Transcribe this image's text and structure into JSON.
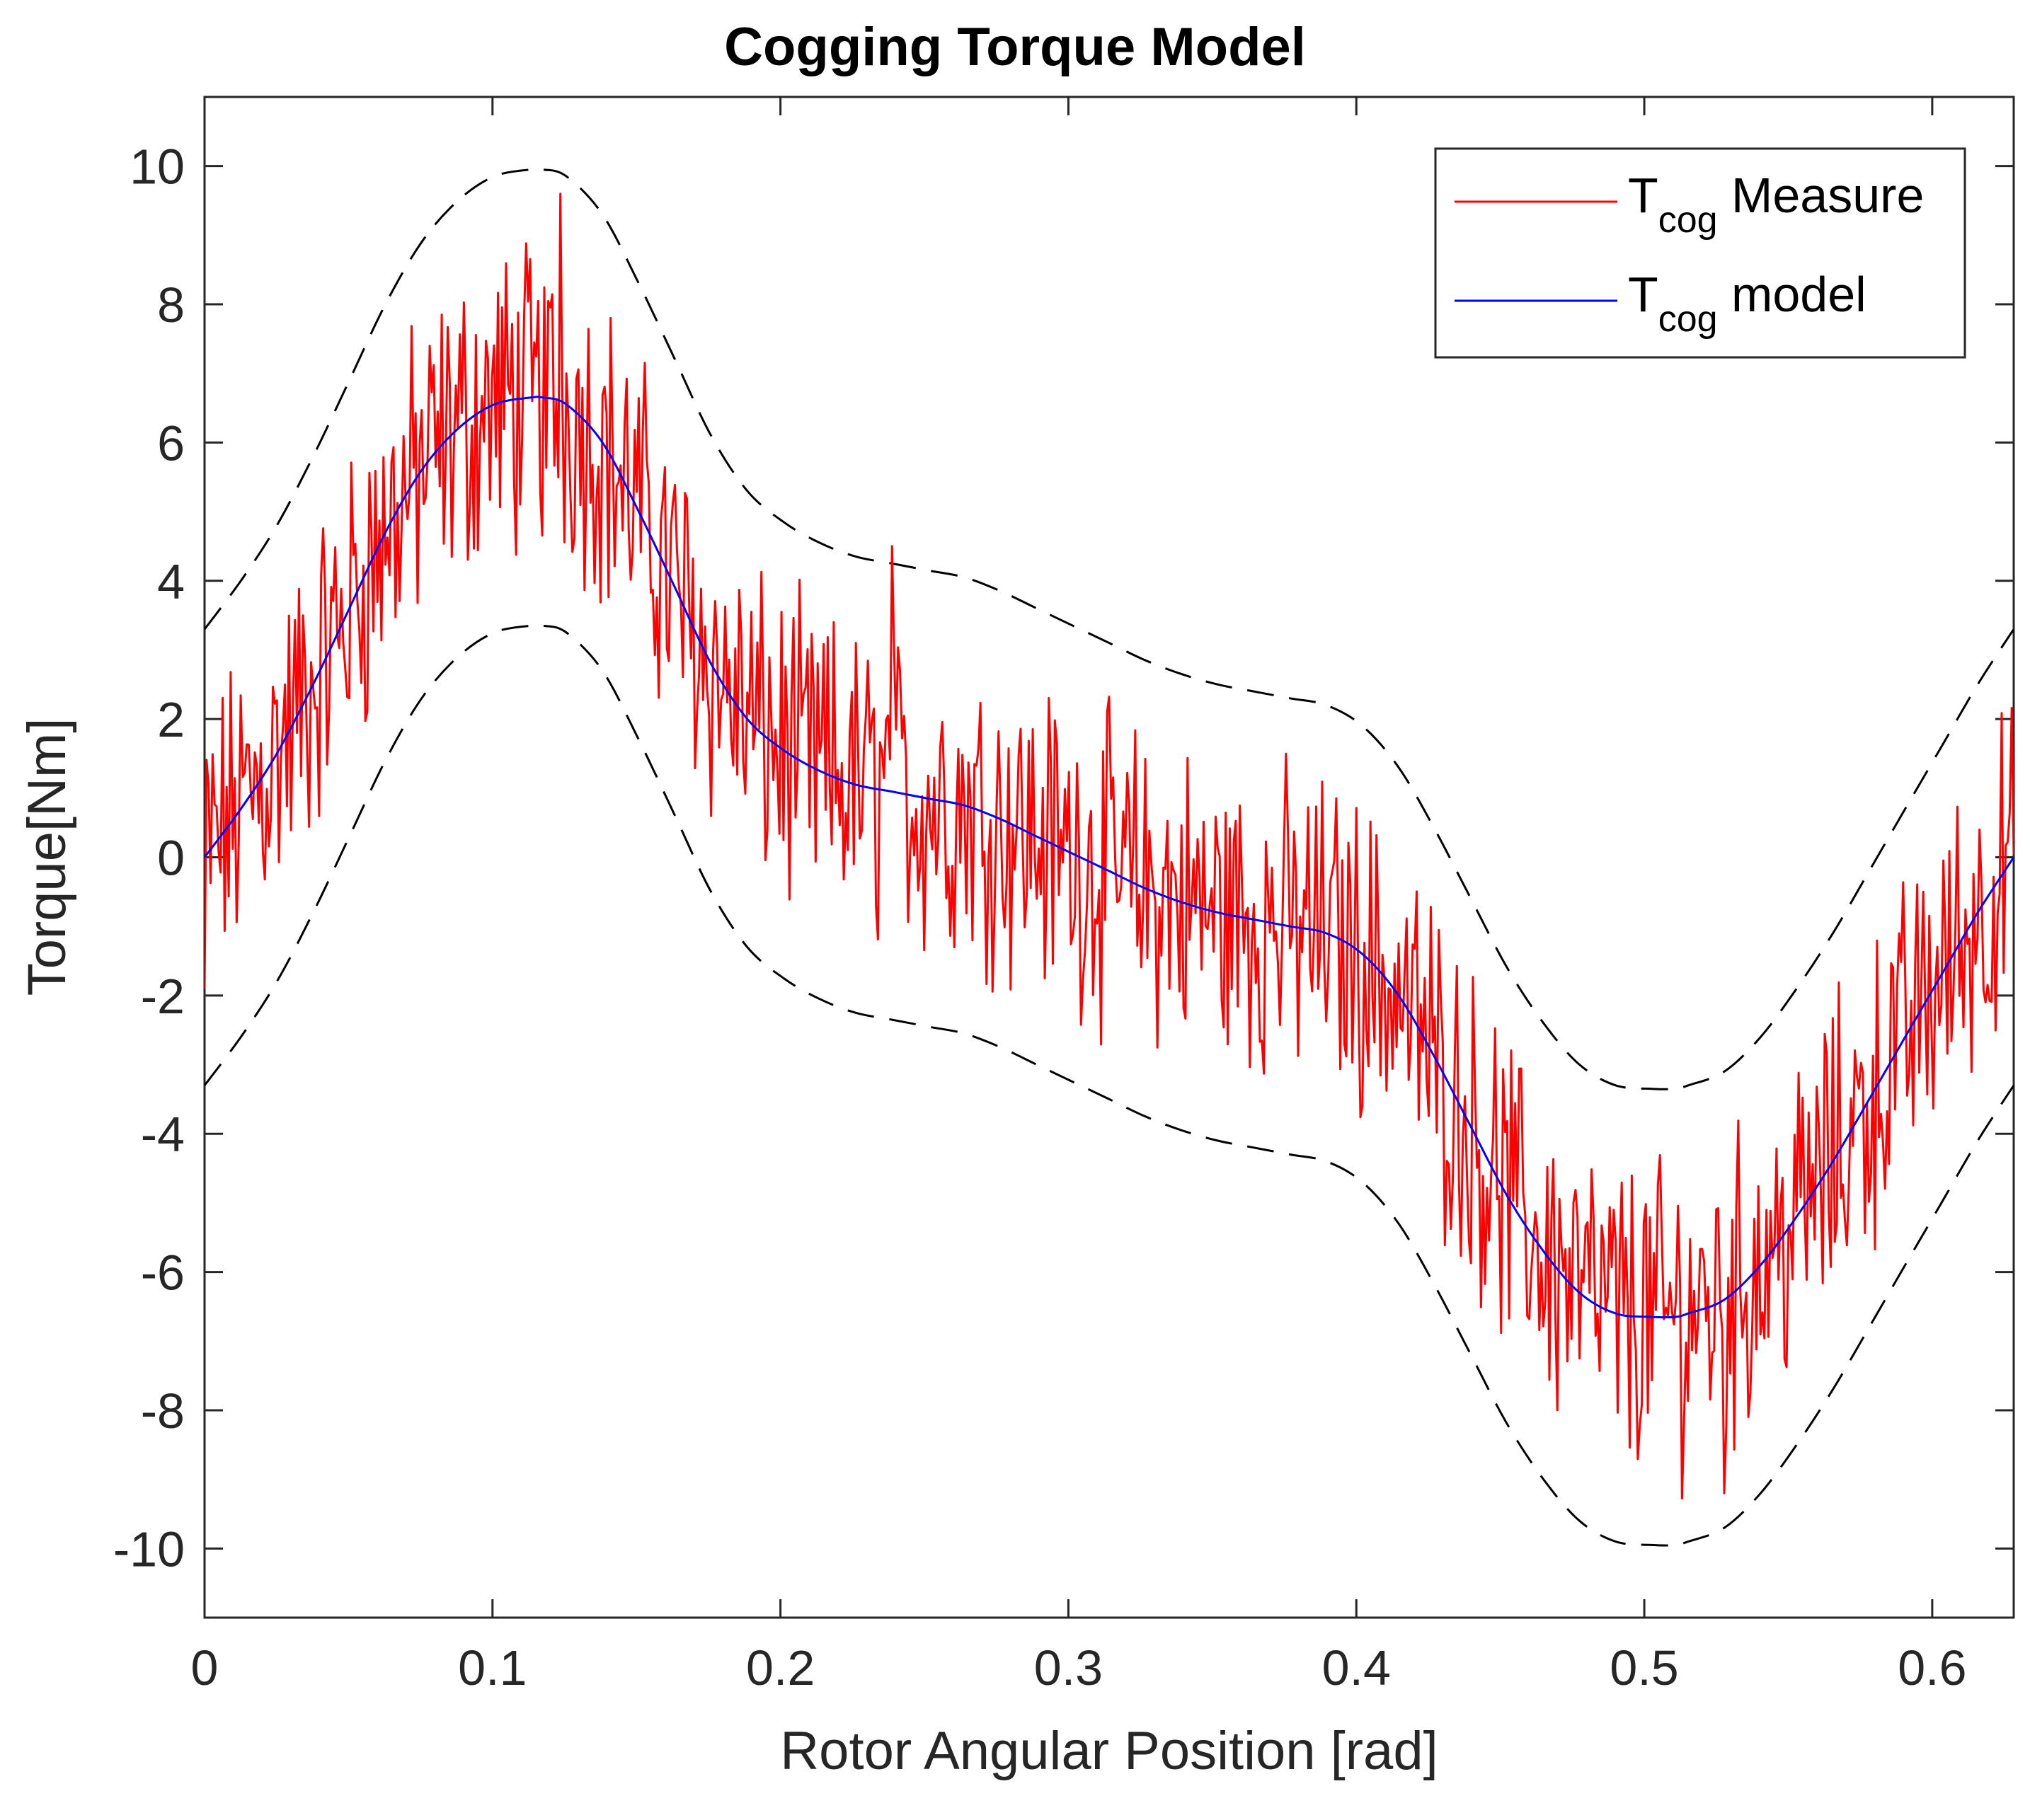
{
  "chart_data": {
    "type": "line",
    "title": "Cogging Torque Model",
    "xlabel": "Rotor Angular Position [rad]",
    "ylabel": "Torque[Nm]",
    "xlim": [
      0,
      0.6283
    ],
    "ylim": [
      -11,
      11
    ],
    "xticks": [
      0,
      0.1,
      0.2,
      0.3,
      0.4,
      0.5,
      0.6
    ],
    "xtick_labels": [
      "0",
      "0.1",
      "0.2",
      "0.3",
      "0.4",
      "0.5",
      "0.6"
    ],
    "yticks": [
      -10,
      -8,
      -6,
      -4,
      -2,
      0,
      2,
      4,
      6,
      8,
      10
    ],
    "ytick_labels": [
      "-10",
      "-8",
      "-6",
      "-4",
      "-2",
      "0",
      "2",
      "4",
      "6",
      "8",
      "10"
    ],
    "grid": false,
    "legend_position": "top-right",
    "series": [
      {
        "name": "T_cog Measure",
        "legend_main": "T",
        "legend_sub": "cog",
        "legend_suffix": " Measure",
        "color": "#ff0000",
        "style": "solid",
        "note": "noisy measurement, model plus random noise of about +/-3 Nm",
        "x": [
          0,
          0.0126,
          0.0251,
          0.0377,
          0.0503,
          0.0628,
          0.0754,
          0.088,
          0.1005,
          0.1131,
          0.1236,
          0.1257,
          0.1382,
          0.1508,
          0.1634,
          0.1759,
          0.1885,
          0.2011,
          0.2136,
          0.2262,
          0.2388,
          0.2513,
          0.2639,
          0.2765,
          0.289,
          0.3016,
          0.3142,
          0.3267,
          0.3393,
          0.3519,
          0.3644,
          0.377,
          0.3896,
          0.4021,
          0.4147,
          0.4273,
          0.4398,
          0.4524,
          0.465,
          0.4775,
          0.4901,
          0.5027,
          0.5152,
          0.5278,
          0.5404,
          0.5529,
          0.5655,
          0.5781,
          0.5906,
          0.6032,
          0.6158,
          0.6283
        ],
        "y": [
          0.0,
          0.8,
          1.5,
          2.4,
          3.3,
          4.4,
          5.5,
          6.2,
          6.9,
          7.2,
          9.6,
          6.6,
          6.2,
          5.6,
          4.8,
          3.9,
          2.9,
          2.0,
          1.6,
          1.2,
          4.5,
          0.9,
          0.8,
          0.7,
          0.5,
          0.2,
          -0.1,
          -0.4,
          -0.6,
          -0.8,
          -0.9,
          -1.0,
          -1.1,
          -1.4,
          -2.0,
          -2.8,
          -3.8,
          -4.8,
          -5.4,
          -6.0,
          -6.6,
          -6.4,
          -6.7,
          -9.2,
          -6.4,
          -5.3,
          -4.3,
          -3.2,
          -2.1,
          -1.3,
          -0.6,
          0.2
        ]
      },
      {
        "name": "T_cog model",
        "legend_main": "T",
        "legend_sub": "cog",
        "legend_suffix": " model",
        "color": "#0000ff",
        "style": "solid",
        "x": [
          0,
          0.0126,
          0.0251,
          0.0377,
          0.0503,
          0.0628,
          0.0754,
          0.088,
          0.1005,
          0.1131,
          0.1176,
          0.1257,
          0.1382,
          0.1508,
          0.1634,
          0.1759,
          0.1885,
          0.2011,
          0.2136,
          0.2262,
          0.2388,
          0.2513,
          0.2639,
          0.2765,
          0.289,
          0.3016,
          0.3142,
          0.3267,
          0.3393,
          0.3519,
          0.3644,
          0.377,
          0.3896,
          0.4021,
          0.4147,
          0.4273,
          0.4398,
          0.4524,
          0.465,
          0.4775,
          0.4901,
          0.5027,
          0.5107,
          0.5152,
          0.5278,
          0.5404,
          0.5529,
          0.5655,
          0.5781,
          0.5906,
          0.6032,
          0.6158,
          0.6283
        ],
        "y": [
          0.0,
          0.7,
          1.5,
          2.5,
          3.6,
          4.7,
          5.6,
          6.2,
          6.55,
          6.65,
          6.65,
          6.55,
          6.0,
          5.0,
          3.9,
          2.8,
          2.0,
          1.55,
          1.25,
          1.05,
          0.95,
          0.85,
          0.75,
          0.55,
          0.3,
          0.05,
          -0.2,
          -0.45,
          -0.65,
          -0.8,
          -0.9,
          -1.0,
          -1.1,
          -1.4,
          -2.0,
          -2.9,
          -3.9,
          -4.9,
          -5.7,
          -6.3,
          -6.6,
          -6.65,
          -6.65,
          -6.6,
          -6.4,
          -5.9,
          -5.2,
          -4.4,
          -3.5,
          -2.6,
          -1.7,
          -0.8,
          0.0
        ]
      },
      {
        "name": "upper bound",
        "color": "#000000",
        "style": "dashed",
        "x": [
          0,
          0.0126,
          0.0251,
          0.0377,
          0.0503,
          0.0628,
          0.0754,
          0.088,
          0.1005,
          0.1131,
          0.1176,
          0.1257,
          0.1382,
          0.1508,
          0.1634,
          0.1759,
          0.1885,
          0.2011,
          0.2136,
          0.2262,
          0.2388,
          0.2513,
          0.2639,
          0.2765,
          0.289,
          0.3016,
          0.3142,
          0.3267,
          0.3393,
          0.3519,
          0.3644,
          0.377,
          0.3896,
          0.4021,
          0.4147,
          0.4273,
          0.4398,
          0.4524,
          0.465,
          0.4775,
          0.4901,
          0.5027,
          0.5107,
          0.5152,
          0.5278,
          0.5404,
          0.5529,
          0.5655,
          0.5781,
          0.5906,
          0.6032,
          0.6158,
          0.6283
        ],
        "y": [
          3.3,
          4.0,
          4.8,
          5.8,
          6.9,
          8.0,
          8.9,
          9.5,
          9.85,
          9.95,
          9.95,
          9.85,
          9.3,
          8.3,
          7.2,
          6.1,
          5.3,
          4.85,
          4.55,
          4.35,
          4.25,
          4.15,
          4.05,
          3.85,
          3.6,
          3.35,
          3.1,
          2.85,
          2.65,
          2.5,
          2.4,
          2.3,
          2.2,
          1.9,
          1.3,
          0.4,
          -0.6,
          -1.6,
          -2.4,
          -3.0,
          -3.3,
          -3.35,
          -3.35,
          -3.3,
          -3.1,
          -2.6,
          -1.9,
          -1.1,
          -0.2,
          0.7,
          1.6,
          2.5,
          3.3
        ]
      },
      {
        "name": "lower bound",
        "color": "#000000",
        "style": "dashed",
        "x": [
          0,
          0.0126,
          0.0251,
          0.0377,
          0.0503,
          0.0628,
          0.0754,
          0.088,
          0.1005,
          0.1131,
          0.1176,
          0.1257,
          0.1382,
          0.1508,
          0.1634,
          0.1759,
          0.1885,
          0.2011,
          0.2136,
          0.2262,
          0.2388,
          0.2513,
          0.2639,
          0.2765,
          0.289,
          0.3016,
          0.3142,
          0.3267,
          0.3393,
          0.3519,
          0.3644,
          0.377,
          0.3896,
          0.4021,
          0.4147,
          0.4273,
          0.4398,
          0.4524,
          0.465,
          0.4775,
          0.4901,
          0.5027,
          0.5107,
          0.5152,
          0.5278,
          0.5404,
          0.5529,
          0.5655,
          0.5781,
          0.5906,
          0.6032,
          0.6158,
          0.6283
        ],
        "y": [
          -3.3,
          -2.6,
          -1.8,
          -0.8,
          0.3,
          1.4,
          2.3,
          2.9,
          3.25,
          3.35,
          3.35,
          3.25,
          2.7,
          1.7,
          0.6,
          -0.5,
          -1.3,
          -1.75,
          -2.05,
          -2.25,
          -2.35,
          -2.45,
          -2.55,
          -2.75,
          -3.0,
          -3.25,
          -3.5,
          -3.75,
          -3.95,
          -4.1,
          -4.2,
          -4.3,
          -4.4,
          -4.7,
          -5.3,
          -6.2,
          -7.2,
          -8.2,
          -9.0,
          -9.6,
          -9.9,
          -9.95,
          -9.95,
          -9.9,
          -9.7,
          -9.2,
          -8.5,
          -7.7,
          -6.8,
          -5.9,
          -5.0,
          -4.1,
          -3.3
        ]
      }
    ]
  }
}
